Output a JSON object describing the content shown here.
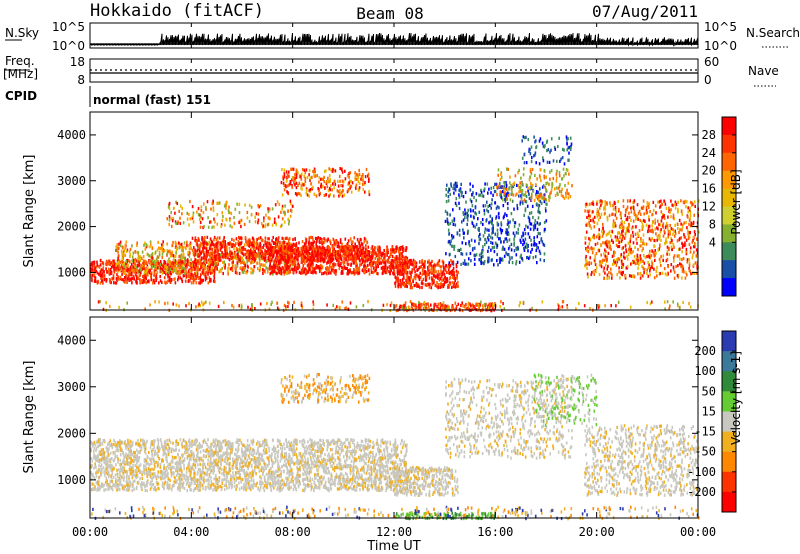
{
  "header": {
    "station": "Hokkaido (fitACF)",
    "beam": "Beam 08",
    "date": "07/Aug/2011"
  },
  "top_panels": {
    "nsky_label": "N.Sky",
    "nsky_ticks": [
      "10^5",
      "10^0"
    ],
    "nsearch_label": "N.Search",
    "nsearch_ticks": [
      "10^5",
      "10^0"
    ],
    "freq_label": "Freq.",
    "freq_unit": "[MHz]",
    "freq_ticks": [
      "18",
      "8"
    ],
    "nave_label": "Nave",
    "nave_ticks": [
      "60",
      "0"
    ],
    "cpid_label": "CPID",
    "cpid_text": "normal (fast) 151"
  },
  "chart_data": [
    {
      "type": "heatmap",
      "name": "power",
      "ylabel": "Slant Range [km]",
      "y_ticks": [
        "1000",
        "2000",
        "3000",
        "4000"
      ],
      "ylim": [
        180,
        4500
      ],
      "xlim": [
        0,
        24
      ],
      "colorbar_label": "Power [dB]",
      "colorbar_ticks": [
        "28",
        "24",
        "20",
        "16",
        "12",
        "8",
        "4"
      ],
      "colorbar_colors": [
        "#ff0000",
        "#ff3300",
        "#ff6600",
        "#ff9900",
        "#e8b800",
        "#cfcf30",
        "#86b030",
        "#3d8a5a",
        "#1a4fa8",
        "#0000ff"
      ]
    },
    {
      "type": "heatmap",
      "name": "velocity",
      "ylabel": "Slant Range [km]",
      "y_ticks": [
        "1000",
        "2000",
        "3000",
        "4000"
      ],
      "ylim": [
        180,
        4500
      ],
      "xlim": [
        0,
        24
      ],
      "colorbar_label": "Velocity [m s-1]",
      "colorbar_ticks": [
        "200",
        "100",
        "50",
        "15",
        "-15",
        "-50",
        "-100",
        "-200"
      ],
      "colorbar_colors": [
        "#2a3cb0",
        "#3b7a9a",
        "#2f8a3a",
        "#66cc33",
        "#c8c8c0",
        "#f0b020",
        "#ff8800",
        "#ff3300",
        "#ff0000"
      ]
    }
  ],
  "x_axis": {
    "ticks": [
      "00:00",
      "04:00",
      "08:00",
      "12:00",
      "16:00",
      "20:00",
      "00:00"
    ],
    "label": "Time UT"
  }
}
